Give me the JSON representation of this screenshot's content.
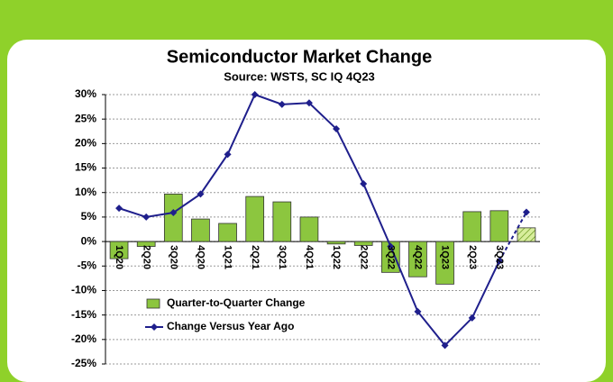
{
  "chart_data": {
    "type": "bar_line",
    "title": "Semiconductor Market Change",
    "subtitle": "Source: WSTS, SC IQ 4Q23",
    "categories": [
      "1Q20",
      "2Q20",
      "3Q20",
      "4Q20",
      "1Q21",
      "2Q21",
      "3Q21",
      "4Q21",
      "1Q22",
      "2Q22",
      "3Q22",
      "4Q22",
      "1Q23",
      "2Q23",
      "3Q23",
      null
    ],
    "series": [
      {
        "name": "Quarter-to-Quarter Change",
        "type": "bar",
        "color": "#8cc63f",
        "values": [
          -3.5,
          -1,
          9.7,
          4.6,
          3.7,
          9.2,
          8.1,
          5,
          -0.5,
          -0.8,
          -6.3,
          -7.2,
          -8.7,
          6.1,
          6.3,
          2.8
        ]
      },
      {
        "name": "Change Versus Year Ago",
        "type": "line",
        "color": "#1f1f8c",
        "values": [
          6.8,
          5,
          5.9,
          9.7,
          17.8,
          30,
          28,
          28.3,
          23,
          11.8,
          -1,
          -14.3,
          -21.2,
          -15.6,
          -4,
          6
        ]
      }
    ],
    "ylim": [
      -25,
      30
    ],
    "yticks": [
      {
        "value": -25,
        "label": "-25%"
      },
      {
        "value": -20,
        "label": "-20%"
      },
      {
        "value": -15,
        "label": "-15%"
      },
      {
        "value": -10,
        "label": "-10%"
      },
      {
        "value": -5,
        "label": "-5%"
      },
      {
        "value": 0,
        "label": "0%"
      },
      {
        "value": 5,
        "label": "5%"
      },
      {
        "value": 10,
        "label": "10%"
      },
      {
        "value": 15,
        "label": "15%"
      },
      {
        "value": 20,
        "label": "20%"
      },
      {
        "value": 25,
        "label": "25%"
      },
      {
        "value": 30,
        "label": "30%"
      }
    ],
    "grid": true
  }
}
